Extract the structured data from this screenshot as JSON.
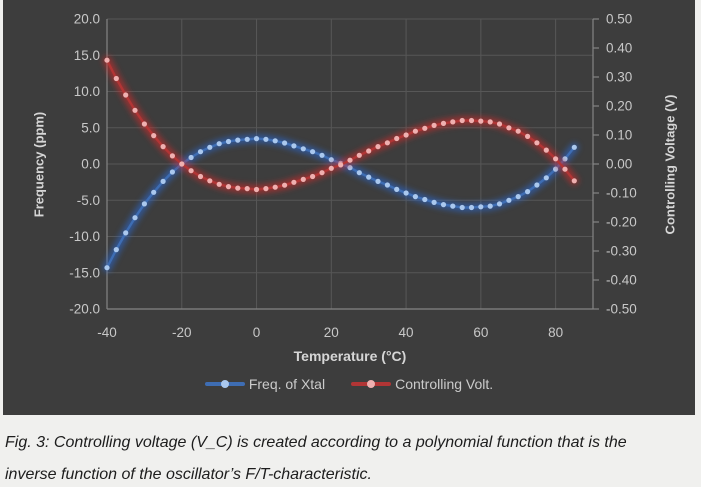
{
  "page": {
    "background": "#f0f0ee"
  },
  "chart": {
    "panel_background": "#3d3d3d",
    "grid_color": "#575757",
    "axis_color": "#858585",
    "tick_label_color": "#c8c8c8",
    "title_color": "#d6d6d6",
    "legend_text_color": "#cbcbcb"
  },
  "chart_data": {
    "type": "line",
    "title": "",
    "xlabel": "Temperature (°C)",
    "ylabel_left": "Frequency (ppm)",
    "ylabel_right": "Controlling Voltage (V)",
    "xlim": [
      -40,
      90
    ],
    "ylim_left": [
      -20,
      20
    ],
    "ylim_right": [
      -0.5,
      0.5
    ],
    "x_ticks": [
      -40,
      -20,
      0,
      20,
      40,
      60,
      80
    ],
    "y_ticks_left": [
      "20.0",
      "15.0",
      "10.0",
      "5.0",
      "0.0",
      "-5.0",
      "-10.0",
      "-15.0",
      "-20.0"
    ],
    "y_ticks_right": [
      "0.50",
      "0.40",
      "0.30",
      "0.20",
      "0.10",
      "0.00",
      "-0.10",
      "-0.20",
      "-0.30",
      "-0.40",
      "-0.50"
    ],
    "grid": true,
    "legend_position": "bottom",
    "x": [
      -40,
      -37.5,
      -35,
      -32.5,
      -30,
      -27.5,
      -25,
      -22.5,
      -20,
      -17.5,
      -15,
      -12.5,
      -10,
      -7.5,
      -5,
      -2.5,
      0,
      2.5,
      5,
      7.5,
      10,
      12.5,
      15,
      17.5,
      20,
      22.5,
      25,
      27.5,
      30,
      32.5,
      35,
      37.5,
      40,
      42.5,
      45,
      47.5,
      50,
      52.5,
      55,
      57.5,
      60,
      62.5,
      65,
      67.5,
      70,
      72.5,
      75,
      77.5,
      80,
      82.5,
      85
    ],
    "series": [
      {
        "name": "Freq. of Xtal",
        "axis": "left",
        "line_color": "#3e6db3",
        "dot_color": "#aac8ee",
        "glow_color": "#2b6bd6",
        "values": [
          -14.3,
          -11.8,
          -9.5,
          -7.4,
          -5.5,
          -3.9,
          -2.4,
          -1.1,
          0.0,
          0.9,
          1.7,
          2.3,
          2.8,
          3.1,
          3.3,
          3.4,
          3.5,
          3.4,
          3.2,
          2.9,
          2.5,
          2.1,
          1.7,
          1.2,
          0.6,
          0.1,
          -0.5,
          -1.2,
          -1.8,
          -2.4,
          -2.9,
          -3.5,
          -4.0,
          -4.5,
          -4.9,
          -5.3,
          -5.6,
          -5.8,
          -6.0,
          -6.0,
          -5.9,
          -5.8,
          -5.5,
          -5.0,
          -4.5,
          -3.8,
          -2.9,
          -1.9,
          -0.7,
          0.7,
          2.3
        ]
      },
      {
        "name": "Controlling Volt.",
        "axis": "right",
        "line_color": "#b13535",
        "dot_color": "#efb0b0",
        "glow_color": "#d92b2b",
        "values": [
          0.358,
          0.295,
          0.238,
          0.185,
          0.138,
          0.098,
          0.06,
          0.028,
          0.0,
          -0.023,
          -0.043,
          -0.058,
          -0.07,
          -0.078,
          -0.083,
          -0.085,
          -0.088,
          -0.085,
          -0.08,
          -0.073,
          -0.063,
          -0.053,
          -0.043,
          -0.03,
          -0.015,
          -0.003,
          0.013,
          0.03,
          0.045,
          0.06,
          0.073,
          0.088,
          0.1,
          0.113,
          0.123,
          0.133,
          0.14,
          0.145,
          0.15,
          0.15,
          0.148,
          0.145,
          0.138,
          0.125,
          0.113,
          0.095,
          0.073,
          0.048,
          0.018,
          -0.018,
          -0.058
        ]
      }
    ]
  },
  "figure": {
    "caption_line1": "Fig. 3: Controlling voltage (V_C) is created according to a polynomial function that is the",
    "caption_line2": "inverse function of the oscillator’s F/T-characteristic."
  }
}
